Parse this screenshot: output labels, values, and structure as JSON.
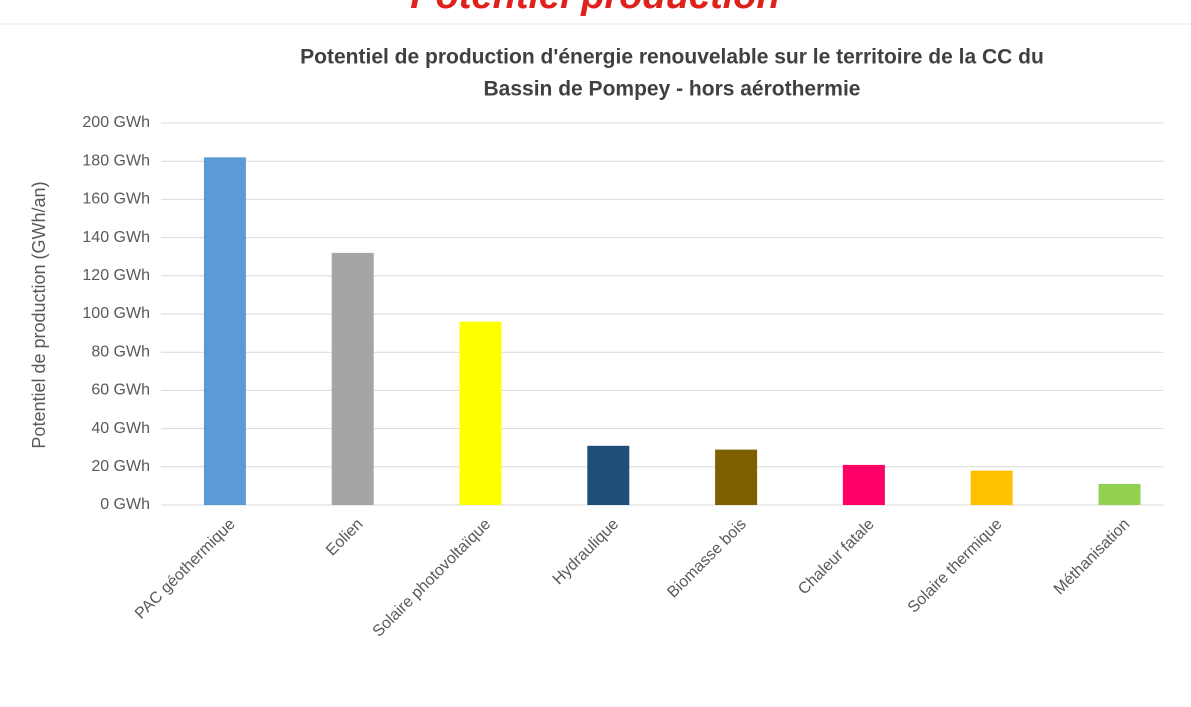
{
  "heading": "Potentiel production",
  "chart_data": {
    "type": "bar",
    "title": [
      "Potentiel de production d'énergie renouvelable sur le territoire de la CC du",
      "Bassin de Pompey - hors aérothermie"
    ],
    "y_label": "Potentiel de production (GWh/an)",
    "categories": [
      "PAC géothermique",
      "Eolien",
      "Solaire photovoltaïque",
      "Hydraulique",
      "Biomasse bois",
      "Chaleur fatale",
      "Solaire thermique",
      "Méthanisation"
    ],
    "values": [
      182,
      132,
      96,
      31,
      29,
      21,
      18,
      11
    ],
    "colors": [
      "#5b9bd5",
      "#a5a5a5",
      "#ffff00",
      "#1f4e79",
      "#7f6000",
      "#ff0066",
      "#ffc000",
      "#92d050"
    ],
    "ylim": [
      0,
      200
    ],
    "yticks": [
      {
        "value": 0,
        "label": "0 GWh"
      },
      {
        "value": 20,
        "label": "20 GWh"
      },
      {
        "value": 40,
        "label": "40 GWh"
      },
      {
        "value": 60,
        "label": "60 GWh"
      },
      {
        "value": 80,
        "label": "80 GWh"
      },
      {
        "value": 100,
        "label": "100 GWh"
      },
      {
        "value": 120,
        "label": "120 GWh"
      },
      {
        "value": 140,
        "label": "140 GWh"
      },
      {
        "value": 160,
        "label": "160 GWh"
      },
      {
        "value": 180,
        "label": "180 GWh"
      },
      {
        "value": 200,
        "label": "200 GWh"
      }
    ],
    "grid": true
  }
}
